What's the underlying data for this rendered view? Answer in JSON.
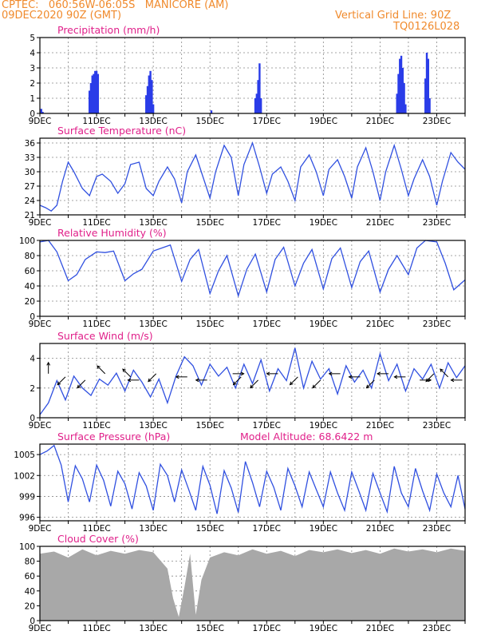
{
  "header": {
    "line1": "CPTEC:   060:56W-06:05S   MANICORE (AM)",
    "line2": "09DEC2020 90Z (GMT)",
    "grid_note": "Vertical Grid Line: 90Z",
    "code": "TQ0126L028"
  },
  "colors": {
    "header": "#f08a2c",
    "title": "#e0208a",
    "line": "#3050e0",
    "bar": "#2a3ce8",
    "cloud": "#a8a8a8",
    "arrow": "#000000"
  },
  "x_labels": [
    "9DEC",
    "11DEC",
    "13DEC",
    "15DEC",
    "17DEC",
    "19DEC",
    "21DEC",
    "23DEC"
  ],
  "chart_data": [
    {
      "type": "bar",
      "title": "Precipitation (mm/h)",
      "ylim": [
        0,
        5
      ],
      "yticks": [
        0,
        1,
        2,
        3,
        4,
        5
      ],
      "x_range_days": [
        9,
        24
      ],
      "series": [
        {
          "x": [
            9.05,
            9.1,
            10.75,
            10.8,
            10.85,
            10.9,
            10.95,
            11.0,
            11.05,
            12.75,
            12.8,
            12.85,
            12.9,
            12.95,
            13.0,
            15.05,
            16.6,
            16.65,
            16.7,
            16.75,
            16.8,
            21.6,
            21.65,
            21.7,
            21.75,
            21.8,
            21.85,
            21.9,
            22.6,
            22.65,
            22.7,
            22.75
          ],
          "values": [
            0.3,
            0.1,
            1.5,
            2.0,
            2.5,
            2.6,
            2.8,
            2.8,
            2.6,
            1.2,
            1.8,
            2.5,
            2.8,
            2.2,
            0.6,
            0.2,
            1.0,
            1.3,
            2.2,
            3.3,
            1.0,
            1.3,
            2.6,
            3.6,
            3.8,
            3.0,
            2.0,
            0.6,
            2.3,
            4.0,
            3.6,
            1.0
          ]
        }
      ]
    },
    {
      "type": "line",
      "title": "Surface Temperature (nC)",
      "ylim": [
        21,
        37
      ],
      "yticks": [
        21,
        24,
        27,
        30,
        33,
        36
      ],
      "series": [
        {
          "x": [
            9.0,
            9.2,
            9.4,
            9.6,
            9.8,
            10.0,
            10.2,
            10.5,
            10.75,
            11.0,
            11.2,
            11.5,
            11.75,
            12.0,
            12.2,
            12.5,
            12.75,
            13.0,
            13.2,
            13.5,
            13.75,
            14.0,
            14.2,
            14.5,
            14.75,
            15.0,
            15.2,
            15.5,
            15.75,
            16.0,
            16.2,
            16.5,
            16.75,
            17.0,
            17.2,
            17.5,
            17.75,
            18.0,
            18.2,
            18.5,
            18.75,
            19.0,
            19.2,
            19.5,
            19.75,
            20.0,
            20.2,
            20.5,
            20.75,
            21.0,
            21.2,
            21.5,
            21.75,
            22.0,
            22.2,
            22.5,
            22.75,
            23.0,
            23.2,
            23.5,
            23.75,
            24.0
          ],
          "values": [
            23.0,
            22.5,
            21.8,
            23.0,
            28.0,
            32.0,
            30.0,
            26.5,
            25.0,
            29.0,
            29.5,
            28.0,
            25.5,
            27.5,
            31.5,
            32.0,
            26.5,
            25.0,
            28.0,
            31.0,
            28.5,
            23.5,
            30.0,
            33.5,
            29.0,
            24.5,
            30.0,
            35.5,
            33.0,
            25.0,
            31.5,
            36.0,
            31.0,
            25.5,
            29.5,
            31.0,
            28.0,
            24.0,
            31.0,
            33.5,
            30.0,
            25.0,
            30.5,
            32.5,
            29.0,
            24.5,
            31.0,
            35.0,
            30.0,
            24.0,
            30.0,
            35.5,
            30.5,
            25.0,
            28.5,
            32.5,
            29.0,
            23.0,
            28.0,
            34.0,
            32.0,
            30.5
          ]
        }
      ]
    },
    {
      "type": "line",
      "title": "Relative Humidity (%)",
      "ylim": [
        0,
        100
      ],
      "yticks": [
        0,
        20,
        40,
        60,
        80,
        100
      ],
      "series": [
        {
          "x": [
            9.0,
            9.3,
            9.6,
            10.0,
            10.3,
            10.6,
            11.0,
            11.3,
            11.6,
            12.0,
            12.3,
            12.6,
            13.0,
            13.3,
            13.6,
            14.0,
            14.3,
            14.6,
            15.0,
            15.3,
            15.6,
            16.0,
            16.3,
            16.6,
            17.0,
            17.3,
            17.6,
            18.0,
            18.3,
            18.6,
            19.0,
            19.3,
            19.6,
            20.0,
            20.3,
            20.6,
            21.0,
            21.3,
            21.6,
            22.0,
            22.3,
            22.6,
            23.0,
            23.3,
            23.6,
            24.0
          ],
          "values": [
            98,
            100,
            85,
            47,
            55,
            75,
            85,
            84,
            86,
            47,
            56,
            62,
            86,
            90,
            94,
            46,
            75,
            88,
            30,
            60,
            80,
            27,
            62,
            82,
            32,
            75,
            91,
            40,
            70,
            88,
            36,
            76,
            90,
            38,
            72,
            86,
            32,
            62,
            80,
            55,
            90,
            100,
            98,
            70,
            35,
            48
          ]
        }
      ]
    },
    {
      "type": "line",
      "title": "Surface Wind (m/s)",
      "ylim": [
        0,
        5
      ],
      "yticks": [
        0,
        2,
        4
      ],
      "series": [
        {
          "x": [
            9.0,
            9.3,
            9.6,
            9.9,
            10.2,
            10.5,
            10.8,
            11.1,
            11.4,
            11.7,
            12.0,
            12.3,
            12.6,
            12.9,
            13.2,
            13.5,
            13.8,
            14.1,
            14.4,
            14.7,
            15.0,
            15.3,
            15.6,
            15.9,
            16.2,
            16.5,
            16.8,
            17.1,
            17.4,
            17.7,
            18.0,
            18.3,
            18.6,
            18.9,
            19.2,
            19.5,
            19.8,
            20.1,
            20.4,
            20.7,
            21.0,
            21.3,
            21.6,
            21.9,
            22.2,
            22.5,
            22.8,
            23.1,
            23.4,
            23.7,
            24.0
          ],
          "values": [
            0.2,
            1.0,
            2.5,
            1.2,
            2.8,
            2.0,
            1.5,
            2.6,
            2.2,
            3.0,
            1.8,
            3.2,
            2.4,
            1.4,
            2.6,
            1.0,
            2.8,
            4.1,
            3.5,
            2.2,
            3.6,
            2.8,
            3.4,
            2.0,
            3.6,
            2.3,
            3.9,
            1.8,
            3.3,
            2.5,
            4.7,
            2.0,
            3.8,
            2.6,
            3.3,
            1.6,
            3.5,
            2.4,
            3.2,
            2.0,
            4.3,
            2.5,
            3.6,
            1.8,
            3.3,
            2.6,
            3.6,
            2.0,
            3.7,
            2.7,
            3.5
          ]
        }
      ],
      "arrows": [
        {
          "x": 9.3,
          "dir": "N"
        },
        {
          "x": 9.9,
          "dir": "SW"
        },
        {
          "x": 10.6,
          "dir": "SW"
        },
        {
          "x": 11.3,
          "dir": "NW"
        },
        {
          "x": 12.2,
          "dir": "NW"
        },
        {
          "x": 12.5,
          "dir": "W"
        },
        {
          "x": 13.1,
          "dir": "SW"
        },
        {
          "x": 14.2,
          "dir": "W"
        },
        {
          "x": 14.9,
          "dir": "W"
        },
        {
          "x": 15.8,
          "dir": "E"
        },
        {
          "x": 16.1,
          "dir": "SW"
        },
        {
          "x": 16.7,
          "dir": "SW"
        },
        {
          "x": 17.4,
          "dir": "W"
        },
        {
          "x": 18.1,
          "dir": "SW"
        },
        {
          "x": 18.9,
          "dir": "SW"
        },
        {
          "x": 19.6,
          "dir": "W"
        },
        {
          "x": 20.3,
          "dir": "W"
        },
        {
          "x": 20.8,
          "dir": "SW"
        },
        {
          "x": 21.3,
          "dir": "W"
        },
        {
          "x": 21.9,
          "dir": "W"
        },
        {
          "x": 22.4,
          "dir": "E"
        },
        {
          "x": 22.9,
          "dir": "SW"
        },
        {
          "x": 23.4,
          "dir": "NW"
        },
        {
          "x": 23.9,
          "dir": "W"
        }
      ]
    },
    {
      "type": "line",
      "title": "Surface Pressure (hPa)",
      "subtitle": "Model Altitude: 68.6422 m",
      "ylim": [
        995.5,
        1006.5
      ],
      "yticks": [
        996,
        999,
        1002,
        1005
      ],
      "series": [
        {
          "x": [
            9.0,
            9.25,
            9.5,
            9.75,
            10.0,
            10.25,
            10.5,
            10.75,
            11.0,
            11.25,
            11.5,
            11.75,
            12.0,
            12.25,
            12.5,
            12.75,
            13.0,
            13.25,
            13.5,
            13.75,
            14.0,
            14.25,
            14.5,
            14.75,
            15.0,
            15.25,
            15.5,
            15.75,
            16.0,
            16.25,
            16.5,
            16.75,
            17.0,
            17.25,
            17.5,
            17.75,
            18.0,
            18.25,
            18.5,
            18.75,
            19.0,
            19.25,
            19.5,
            19.75,
            20.0,
            20.25,
            20.5,
            20.75,
            21.0,
            21.25,
            21.5,
            21.75,
            22.0,
            22.25,
            22.5,
            22.75,
            23.0,
            23.25,
            23.5,
            23.75,
            24.0
          ],
          "values": [
            1005.0,
            1005.5,
            1006.3,
            1003.5,
            998.2,
            1003.4,
            1001.5,
            998.2,
            1003.5,
            1001.3,
            997.6,
            1002.6,
            1000.8,
            997.2,
            1002.4,
            1000.5,
            997.0,
            1003.6,
            1002.0,
            998.2,
            1002.8,
            1000.0,
            997.0,
            1003.3,
            1000.6,
            996.5,
            1002.7,
            1000.2,
            996.7,
            1004.0,
            1001.0,
            997.5,
            1002.6,
            1000.3,
            997.0,
            1003.0,
            1000.5,
            997.5,
            1002.5,
            1000.0,
            997.5,
            1002.5,
            999.5,
            997.0,
            1002.5,
            999.8,
            997.0,
            1002.3,
            999.5,
            996.8,
            1003.3,
            999.5,
            997.5,
            1003.0,
            999.8,
            997.0,
            1002.2,
            999.5,
            997.5,
            1002.0,
            997.2
          ]
        }
      ]
    },
    {
      "type": "area",
      "title": "Cloud Cover (%)",
      "ylim": [
        0,
        100
      ],
      "yticks": [
        0,
        20,
        40,
        60,
        80,
        100
      ],
      "series": [
        {
          "x": [
            9.0,
            9.5,
            10.0,
            10.5,
            11.0,
            11.5,
            12.0,
            12.5,
            13.0,
            13.5,
            13.7,
            13.9,
            14.1,
            14.3,
            14.5,
            14.7,
            15.0,
            15.5,
            16.0,
            16.5,
            17.0,
            17.5,
            18.0,
            18.5,
            19.0,
            19.5,
            20.0,
            20.5,
            21.0,
            21.5,
            22.0,
            22.5,
            23.0,
            23.5,
            24.0
          ],
          "values": [
            90,
            93,
            85,
            96,
            88,
            94,
            90,
            95,
            92,
            70,
            30,
            5,
            45,
            90,
            8,
            55,
            85,
            92,
            88,
            96,
            90,
            94,
            87,
            95,
            92,
            96,
            91,
            95,
            90,
            97,
            93,
            96,
            92,
            97,
            94
          ]
        }
      ]
    }
  ]
}
